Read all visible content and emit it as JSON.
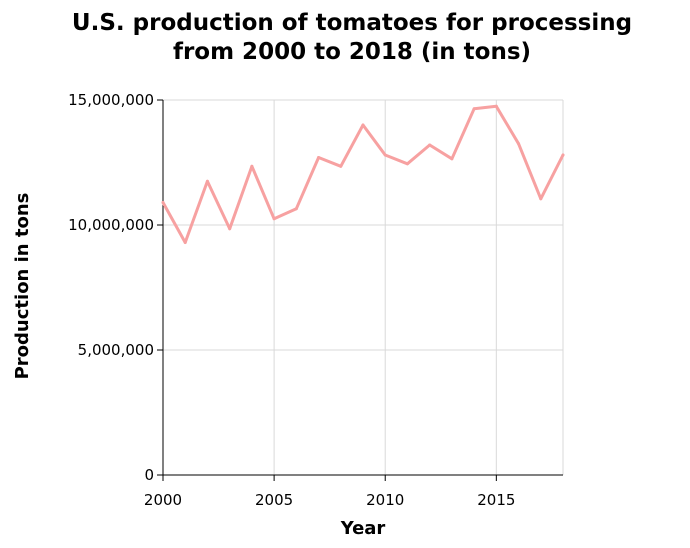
{
  "chart_data": {
    "type": "line",
    "title": "U.S. production of tomatoes for processing from 2000 to 2018 (in tons)",
    "title_lines": [
      "U.S. production of tomatoes for processing",
      "from 2000 to 2018 (in tons)"
    ],
    "xlabel": "Year",
    "ylabel": "Production in tons",
    "xlim": [
      2000,
      2018
    ],
    "ylim": [
      0,
      15000000
    ],
    "x_ticks": [
      2000,
      2005,
      2010,
      2015
    ],
    "x_tick_labels": [
      "2000",
      "2005",
      "2010",
      "2015"
    ],
    "y_ticks": [
      0,
      5000000,
      10000000,
      15000000
    ],
    "y_tick_labels": [
      "0",
      "5,000,000",
      "10,000,000",
      "15,000,000"
    ],
    "grid": true,
    "x": [
      2000,
      2001,
      2002,
      2003,
      2004,
      2005,
      2006,
      2007,
      2008,
      2009,
      2010,
      2011,
      2012,
      2013,
      2014,
      2015,
      2016,
      2017,
      2018
    ],
    "series": [
      {
        "values": [
          10900000,
          9300000,
          11750000,
          9850000,
          12350000,
          10250000,
          10650000,
          12700000,
          12350000,
          14000000,
          12800000,
          12450000,
          13200000,
          12650000,
          14650000,
          14750000,
          13250000,
          11050000,
          12800000
        ],
        "color": "#f7a1a1"
      }
    ]
  }
}
